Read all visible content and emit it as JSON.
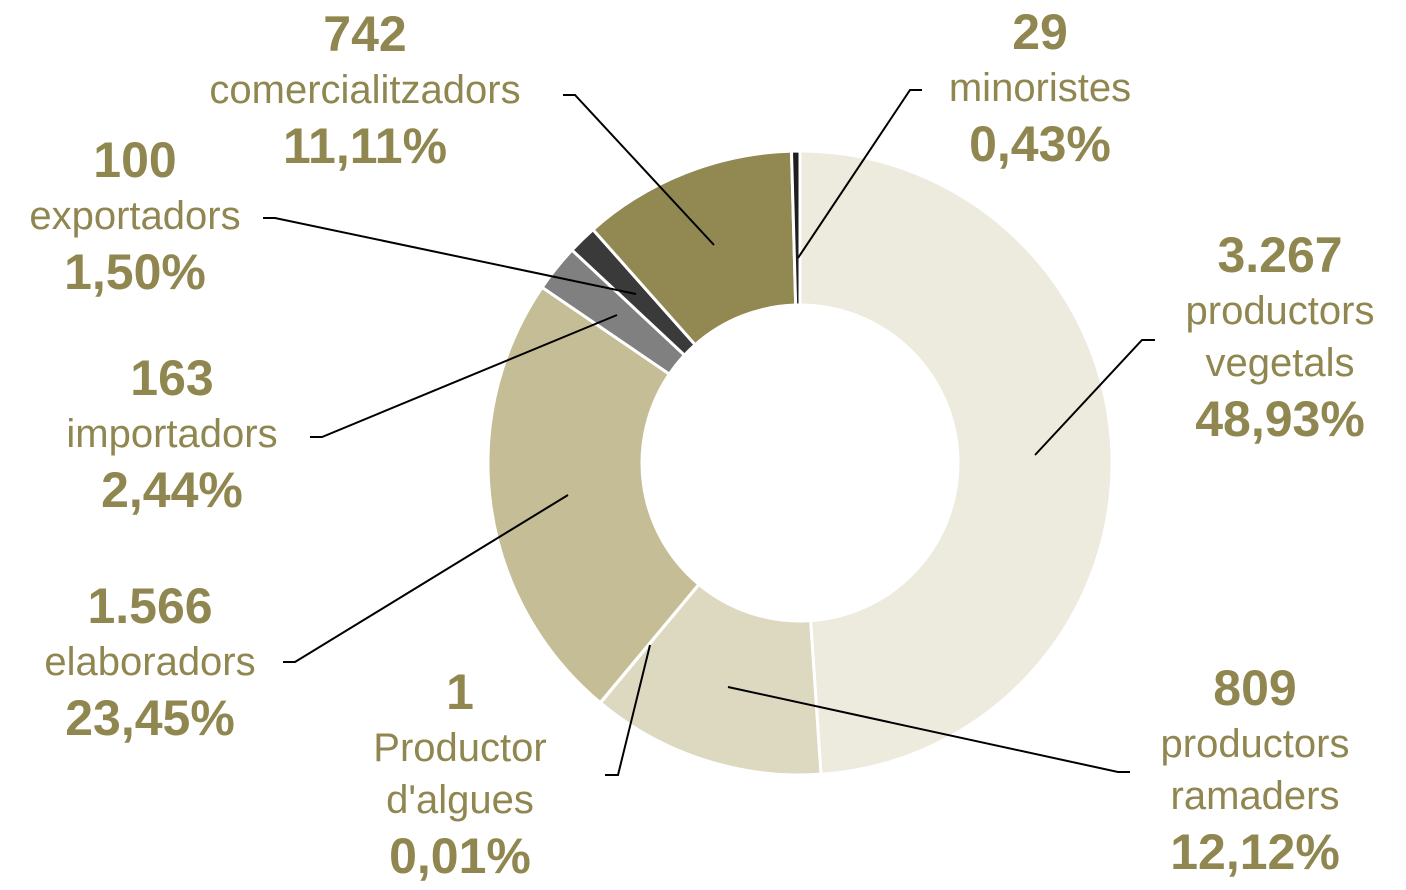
{
  "chart_data": {
    "type": "donut",
    "categories": [
      "productors\nvegetals",
      "productors\nramaders",
      "Productor\nd'algues",
      "elaboradors",
      "importadors",
      "exportadors",
      "comercialitzadors",
      "minoristes"
    ],
    "values": [
      3267,
      809,
      1,
      1566,
      163,
      100,
      742,
      29
    ],
    "value_labels": [
      "3.267",
      "809",
      "1",
      "1.566",
      "163",
      "100",
      "742",
      "29"
    ],
    "percentages": [
      48.93,
      12.12,
      0.01,
      23.45,
      2.44,
      1.5,
      11.11,
      0.43
    ],
    "percentage_labels": [
      "48,93%",
      "12,12%",
      "0,01%",
      "23,45%",
      "2,44%",
      "1,50%",
      "11,11%",
      "0,43%"
    ],
    "colors": [
      "#edeade",
      "#ddd8c0",
      "#d6d0b2",
      "#c5bd96",
      "#808080",
      "#3a3a3a",
      "#918852",
      "#1e1e1e"
    ]
  }
}
